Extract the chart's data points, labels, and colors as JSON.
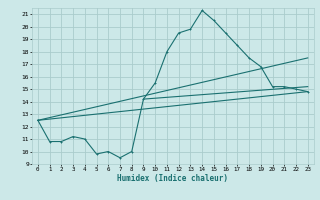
{
  "xlabel": "Humidex (Indice chaleur)",
  "background_color": "#cce8e8",
  "grid_color": "#aacccc",
  "line_color": "#1a7070",
  "xlim": [
    -0.5,
    23.5
  ],
  "ylim": [
    9,
    21.5
  ],
  "yticks": [
    9,
    10,
    11,
    12,
    13,
    14,
    15,
    16,
    17,
    18,
    19,
    20,
    21
  ],
  "xticks": [
    0,
    1,
    2,
    3,
    4,
    5,
    6,
    7,
    8,
    9,
    10,
    11,
    12,
    13,
    14,
    15,
    16,
    17,
    18,
    19,
    20,
    21,
    22,
    23
  ],
  "main_series": [
    [
      0,
      12.5
    ],
    [
      1,
      10.8
    ],
    [
      2,
      10.8
    ],
    [
      3,
      11.2
    ],
    [
      4,
      11.0
    ],
    [
      5,
      9.8
    ],
    [
      6,
      10.0
    ],
    [
      7,
      9.5
    ],
    [
      8,
      10.0
    ],
    [
      9,
      14.2
    ],
    [
      10,
      15.5
    ],
    [
      11,
      18.0
    ],
    [
      12,
      19.5
    ],
    [
      13,
      19.8
    ],
    [
      14,
      21.3
    ],
    [
      15,
      20.5
    ],
    [
      16,
      19.5
    ],
    [
      17,
      18.5
    ],
    [
      18,
      17.5
    ],
    [
      19,
      16.8
    ],
    [
      20,
      15.2
    ],
    [
      21,
      15.2
    ],
    [
      22,
      15.0
    ],
    [
      23,
      14.8
    ]
  ],
  "line2": [
    [
      0,
      12.5
    ],
    [
      23,
      17.5
    ]
  ],
  "line3": [
    [
      0,
      12.5
    ],
    [
      23,
      14.8
    ]
  ],
  "line4": [
    [
      9,
      14.2
    ],
    [
      23,
      15.2
    ]
  ]
}
